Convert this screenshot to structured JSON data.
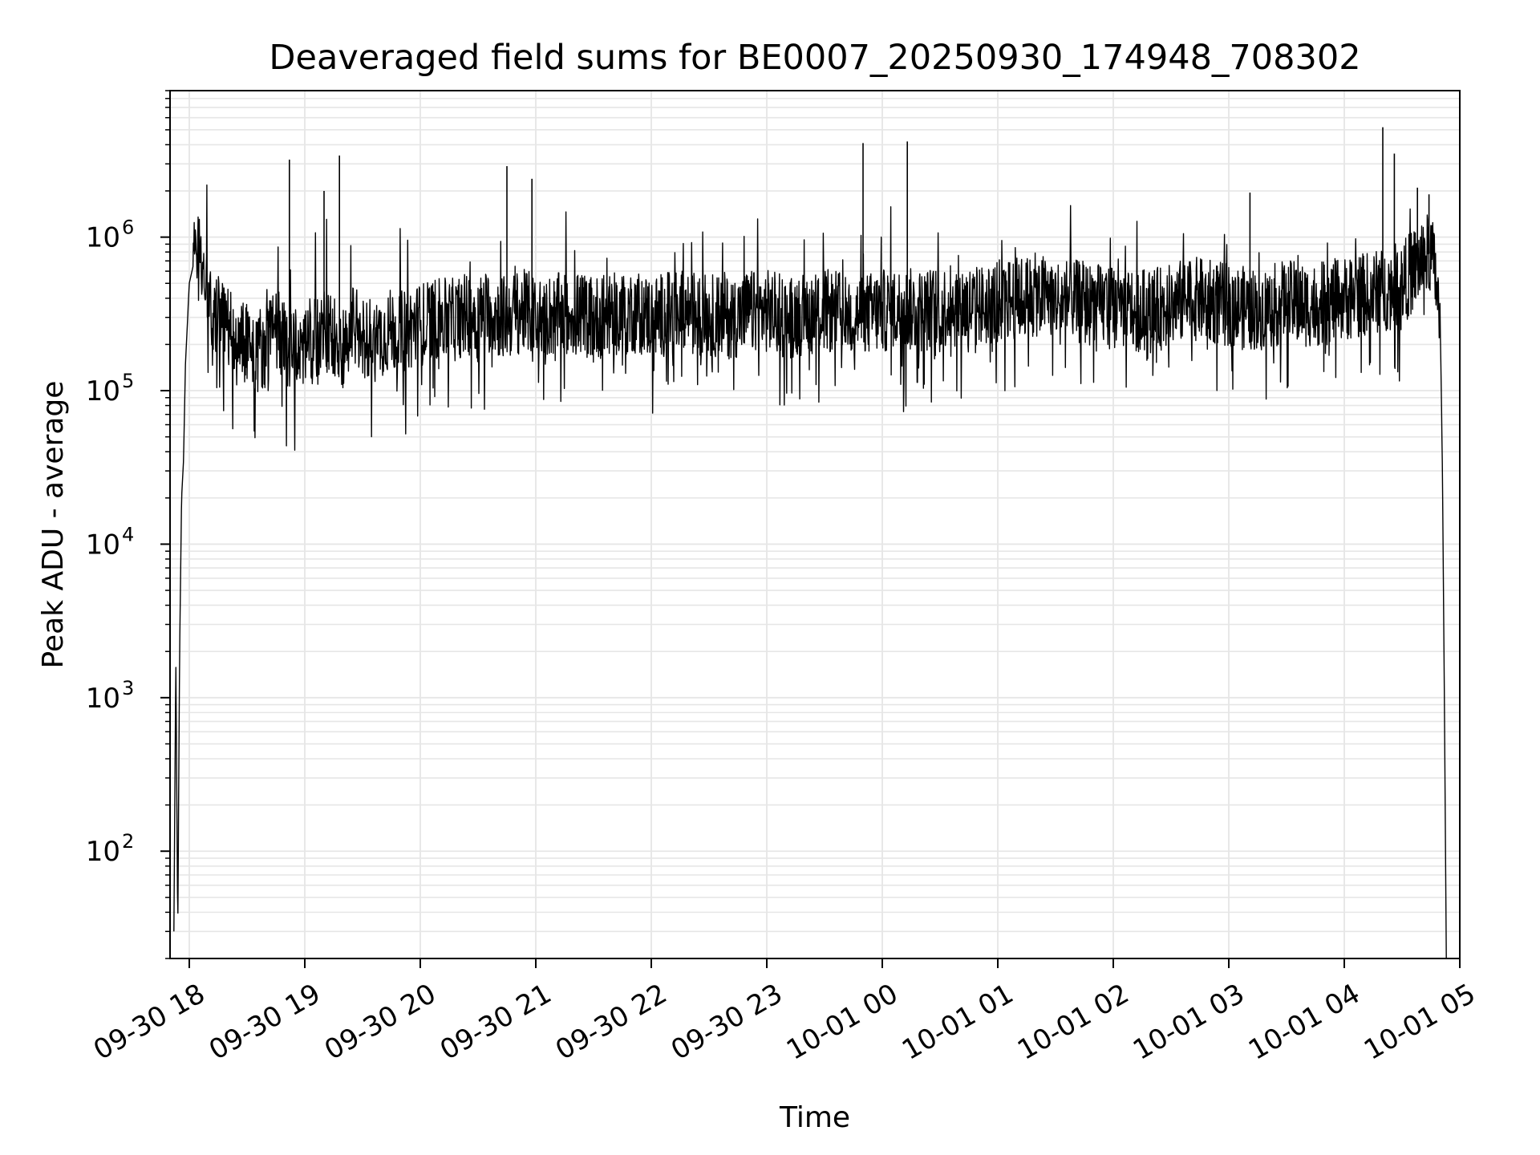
{
  "chart_data": {
    "type": "line",
    "title": "Deaveraged field sums for BE0007_20250930_174948_708302",
    "xlabel": "Time",
    "ylabel": "Peak ADU - average",
    "yscale": "log",
    "grid": true,
    "line_color": "#000000",
    "xlim": [
      "2025-09-30 17:50",
      "2025-10-01 05:00"
    ],
    "ylim": [
      20,
      9000000
    ],
    "x_ticks": [
      "09-30 18",
      "09-30 19",
      "09-30 20",
      "09-30 21",
      "09-30 22",
      "09-30 23",
      "10-01 00",
      "10-01 01",
      "10-01 02",
      "10-01 03",
      "10-01 04",
      "10-01 05"
    ],
    "y_ticks": [
      {
        "base": "10",
        "exp": "2"
      },
      {
        "base": "10",
        "exp": "3"
      },
      {
        "base": "10",
        "exp": "4"
      },
      {
        "base": "10",
        "exp": "5"
      },
      {
        "base": "10",
        "exp": "6"
      }
    ],
    "series": [
      {
        "x": [
          "2025-09-30 17:52",
          "2025-09-30 17:53",
          "2025-09-30 17:54",
          "2025-09-30 17:55",
          "2025-09-30 17:56",
          "2025-09-30 17:57",
          "2025-09-30 17:58",
          "2025-09-30 18:00",
          "2025-09-30 18:02",
          "2025-09-30 18:03",
          "2025-09-30 18:04",
          "2025-09-30 18:05",
          "2025-09-30 18:06",
          "2025-09-30 18:08",
          "2025-09-30 18:10",
          "2025-09-30 18:12",
          "2025-09-30 18:15",
          "2025-09-30 18:20",
          "2025-09-30 18:25",
          "2025-09-30 18:30",
          "2025-09-30 18:35",
          "2025-09-30 18:40",
          "2025-09-30 18:45",
          "2025-09-30 18:50",
          "2025-09-30 18:55",
          "2025-09-30 19:00",
          "2025-09-30 19:05",
          "2025-09-30 19:10",
          "2025-09-30 19:15",
          "2025-09-30 19:20",
          "2025-09-30 19:25",
          "2025-09-30 19:30",
          "2025-09-30 19:35",
          "2025-09-30 19:40",
          "2025-09-30 19:45",
          "2025-09-30 19:50",
          "2025-09-30 19:55",
          "2025-09-30 20:00",
          "2025-09-30 20:05",
          "2025-09-30 20:10",
          "2025-09-30 20:15",
          "2025-09-30 20:20",
          "2025-09-30 20:25",
          "2025-09-30 20:30",
          "2025-09-30 20:35",
          "2025-09-30 20:40",
          "2025-09-30 20:45",
          "2025-09-30 20:50",
          "2025-09-30 20:55",
          "2025-09-30 21:00",
          "2025-09-30 21:10",
          "2025-09-30 21:20",
          "2025-09-30 21:30",
          "2025-09-30 21:40",
          "2025-09-30 21:50",
          "2025-09-30 22:00",
          "2025-09-30 22:10",
          "2025-09-30 22:20",
          "2025-09-30 22:30",
          "2025-09-30 22:40",
          "2025-09-30 22:50",
          "2025-09-30 23:00",
          "2025-09-30 23:10",
          "2025-09-30 23:20",
          "2025-09-30 23:30",
          "2025-09-30 23:40",
          "2025-09-30 23:50",
          "2025-10-01 00:00",
          "2025-10-01 00:10",
          "2025-10-01 00:20",
          "2025-10-01 00:30",
          "2025-10-01 00:40",
          "2025-10-01 00:50",
          "2025-10-01 01:00",
          "2025-10-01 01:10",
          "2025-10-01 01:20",
          "2025-10-01 01:30",
          "2025-10-01 01:40",
          "2025-10-01 01:50",
          "2025-10-01 02:00",
          "2025-10-01 02:10",
          "2025-10-01 02:20",
          "2025-10-01 02:30",
          "2025-10-01 02:40",
          "2025-10-01 02:50",
          "2025-10-01 03:00",
          "2025-10-01 03:10",
          "2025-10-01 03:20",
          "2025-10-01 03:30",
          "2025-10-01 03:40",
          "2025-10-01 03:50",
          "2025-10-01 04:00",
          "2025-10-01 04:10",
          "2025-10-01 04:20",
          "2025-10-01 04:30",
          "2025-10-01 04:40",
          "2025-10-01 04:45",
          "2025-10-01 04:48",
          "2025-10-01 04:50",
          "2025-10-01 04:51",
          "2025-10-01 04:52",
          "2025-10-01 04:53"
        ],
        "y": [
          30,
          1800,
          30,
          2000,
          20000,
          35000,
          150000,
          500000,
          650000,
          900000,
          1000000,
          800000,
          700000,
          600000,
          450000,
          350000,
          300000,
          250000,
          200000,
          220000,
          180000,
          200000,
          250000,
          200000,
          180000,
          200000,
          220000,
          250000,
          230000,
          200000,
          250000,
          230000,
          210000,
          230000,
          250000,
          240000,
          260000,
          270000,
          280000,
          300000,
          280000,
          300000,
          320000,
          300000,
          330000,
          310000,
          300000,
          320000,
          330000,
          300000,
          310000,
          320000,
          300000,
          310000,
          330000,
          300000,
          320000,
          330000,
          310000,
          300000,
          320000,
          330000,
          300000,
          320000,
          330000,
          320000,
          310000,
          330000,
          340000,
          330000,
          350000,
          360000,
          350000,
          380000,
          400000,
          420000,
          400000,
          380000,
          360000,
          350000,
          340000,
          330000,
          360000,
          400000,
          380000,
          360000,
          340000,
          350000,
          380000,
          360000,
          370000,
          400000,
          420000,
          450000,
          500000,
          700000,
          800000,
          500000,
          200000,
          30000,
          1000,
          20
        ]
      }
    ],
    "spikes": [
      {
        "x": "2025-09-30 18:52",
        "y": 3200000
      },
      {
        "x": "2025-09-30 19:10",
        "y": 2000000
      },
      {
        "x": "2025-09-30 19:18",
        "y": 3400000
      },
      {
        "x": "2025-09-30 20:45",
        "y": 2900000
      },
      {
        "x": "2025-09-30 20:58",
        "y": 2400000
      },
      {
        "x": "2025-09-30 23:50",
        "y": 4100000
      },
      {
        "x": "2025-10-01 00:13",
        "y": 4200000
      },
      {
        "x": "2025-10-01 03:11",
        "y": 1950000
      },
      {
        "x": "2025-10-01 04:20",
        "y": 5200000
      },
      {
        "x": "2025-10-01 04:26",
        "y": 3500000
      },
      {
        "x": "2025-10-01 04:38",
        "y": 2100000
      },
      {
        "x": "2025-10-01 04:44",
        "y": 1900000
      }
    ]
  }
}
